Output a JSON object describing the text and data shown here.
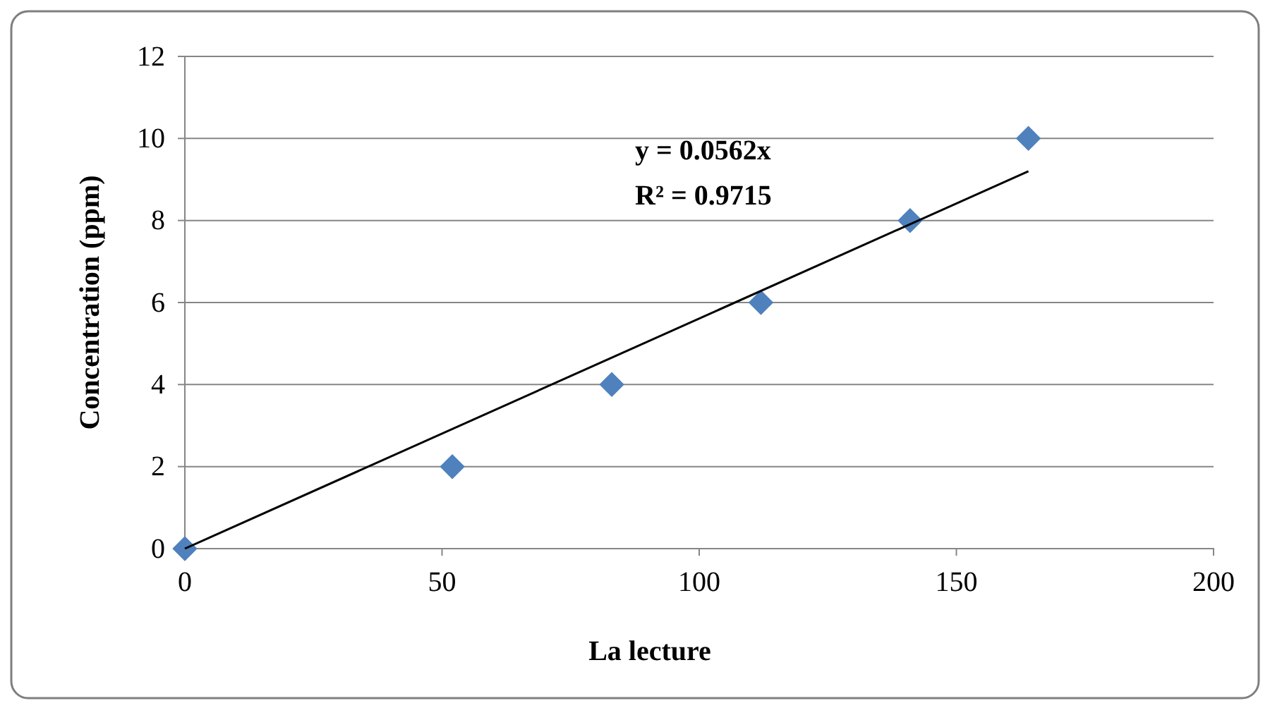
{
  "chart_data": {
    "type": "scatter",
    "xlabel": "La lecture",
    "ylabel": "Concentration (ppm)",
    "x": [
      0,
      52,
      83,
      112,
      141,
      164
    ],
    "series": [
      {
        "color": "#4f81bd",
        "values": [
          0,
          2,
          4,
          6,
          8,
          10
        ],
        "marker": "diamond"
      },
      {
        "type": "line",
        "color": "#000000",
        "x": [
          0,
          164
        ],
        "values": [
          0,
          9.2
        ],
        "marker": "none",
        "line_style": "solid"
      }
    ],
    "annotations": [
      "y = 0.0562x",
      "R² = 0.9715"
    ],
    "xlim": [
      0,
      200
    ],
    "xticks": [
      0,
      50,
      100,
      150,
      200
    ],
    "ylim": [
      0,
      12
    ],
    "yticks": [
      0,
      2,
      4,
      6,
      8,
      10,
      12
    ],
    "grid": "y"
  }
}
